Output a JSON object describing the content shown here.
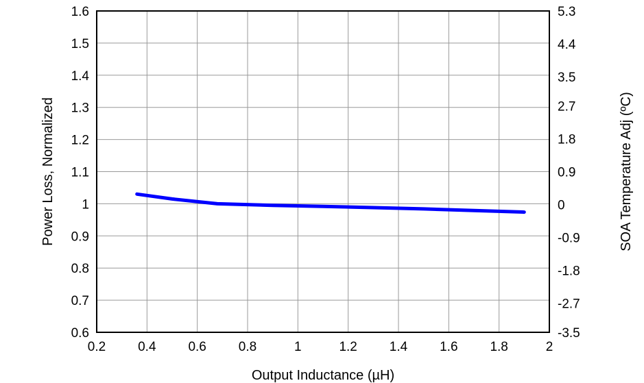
{
  "chart_data": {
    "type": "line",
    "xlabel": "Output Inductance (µH)",
    "ylabel": "Power Loss, Normalized",
    "y2label": "SOA Temperature Adj (ºC)",
    "xlim": [
      0.2,
      2
    ],
    "ylim": [
      0.6,
      1.6
    ],
    "y2lim": [
      -3.5,
      5.3
    ],
    "x_ticks": [
      "0.2",
      "0.4",
      "0.6",
      "0.8",
      "1",
      "1.2",
      "1.4",
      "1.6",
      "1.8",
      "2"
    ],
    "y_ticks": [
      "0.6",
      "0.7",
      "0.8",
      "0.9",
      "1",
      "1.1",
      "1.2",
      "1.3",
      "1.4",
      "1.5",
      "1.6"
    ],
    "y2_ticks": [
      "-3.5",
      "-2.7",
      "-1.8",
      "-0.9",
      "0",
      "0.9",
      "1.8",
      "2.7",
      "3.5",
      "4.4",
      "5.3"
    ],
    "grid": true,
    "series": [
      {
        "color": "#0000ff",
        "x": [
          0.36,
          0.5,
          0.68,
          0.9,
          1.1,
          1.3,
          1.5,
          1.7,
          1.9
        ],
        "y": [
          1.03,
          1.015,
          1.0,
          0.995,
          0.992,
          0.988,
          0.984,
          0.979,
          0.974
        ]
      }
    ]
  }
}
